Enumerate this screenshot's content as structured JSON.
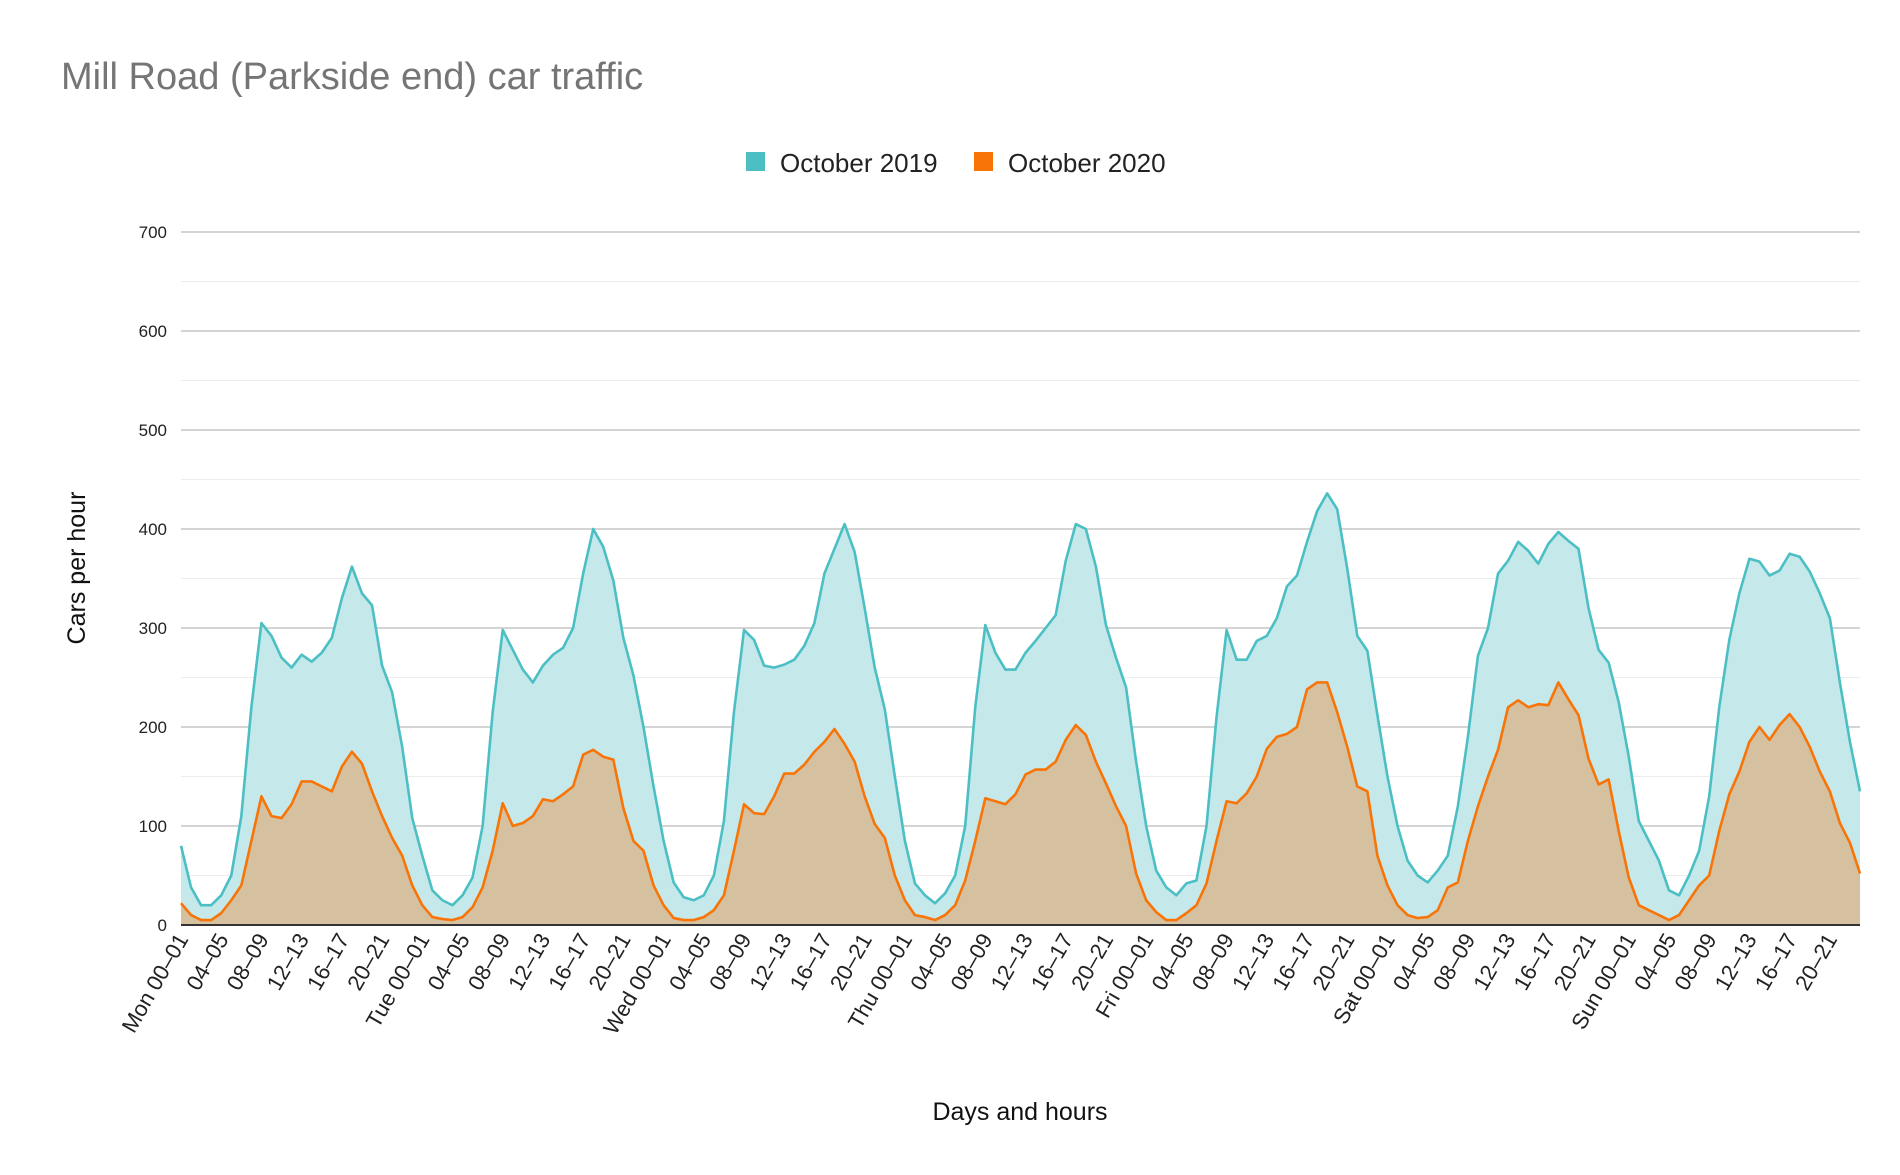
{
  "chart_data": {
    "type": "area",
    "title": "Mill Road (Parkside end) car traffic",
    "xlabel": "Days and hours",
    "ylabel": "Cars per hour",
    "ylim": [
      0,
      700
    ],
    "y_ticks": [
      0,
      100,
      200,
      300,
      400,
      500,
      600,
      700
    ],
    "minor_gridlines": true,
    "legend_position": "top",
    "x_tick_labels": [
      "Mon 00–01",
      "04–05",
      "08–09",
      "12–13",
      "16–17",
      "20–21",
      "Tue 00–01",
      "04–05",
      "08–09",
      "12–13",
      "16–17",
      "20–21",
      "Wed 00–01",
      "04–05",
      "08–09",
      "12–13",
      "16–17",
      "20–21",
      "Thu 00–01",
      "04–05",
      "08–09",
      "12–13",
      "16–17",
      "20–21",
      "Fri 00–01",
      "04–05",
      "08–09",
      "12–13",
      "16–17",
      "20–21",
      "Sat 00–01",
      "04–05",
      "08–09",
      "12–13",
      "16–17",
      "20–21",
      "Sun 00–01",
      "04–05",
      "08–09",
      "12–13",
      "16–17",
      "20–21"
    ],
    "x_tick_every_hours": 4,
    "series": [
      {
        "name": "October 2019",
        "color": "#4bbfc4",
        "fill": "#c5e9eb",
        "values": [
          80,
          38,
          20,
          20,
          30,
          50,
          110,
          220,
          305,
          292,
          270,
          260,
          273,
          266,
          275,
          290,
          330,
          362,
          335,
          323,
          262,
          235,
          180,
          108,
          70,
          35,
          25,
          20,
          30,
          48,
          100,
          215,
          298,
          278,
          258,
          245,
          262,
          273,
          280,
          300,
          355,
          400,
          382,
          348,
          290,
          252,
          200,
          140,
          85,
          43,
          28,
          25,
          30,
          50,
          105,
          215,
          298,
          288,
          262,
          260,
          263,
          268,
          282,
          305,
          355,
          380,
          405,
          377,
          320,
          260,
          218,
          150,
          85,
          42,
          30,
          22,
          32,
          50,
          100,
          220,
          303,
          275,
          258,
          258,
          275,
          287,
          300,
          313,
          368,
          405,
          400,
          362,
          303,
          270,
          240,
          165,
          100,
          55,
          38,
          30,
          42,
          45,
          100,
          210,
          298,
          268,
          268,
          287,
          292,
          310,
          342,
          353,
          387,
          418,
          436,
          420,
          360,
          292,
          277,
          212,
          150,
          100,
          65,
          50,
          43,
          55,
          70,
          120,
          190,
          272,
          300,
          355,
          368,
          387,
          378,
          365,
          385,
          397,
          388,
          380,
          320,
          278,
          265,
          225,
          170,
          105,
          85,
          65,
          35,
          30,
          50,
          75,
          130,
          220,
          288,
          335,
          370,
          367,
          353,
          358,
          375,
          372,
          357,
          335,
          310,
          245,
          185,
          135
        ]
      },
      {
        "name": "October 2020",
        "color": "#f97407",
        "fill": "#d5c1a0",
        "values": [
          22,
          10,
          5,
          5,
          12,
          25,
          40,
          85,
          130,
          110,
          108,
          122,
          145,
          145,
          140,
          135,
          160,
          175,
          163,
          135,
          110,
          88,
          70,
          40,
          20,
          8,
          6,
          5,
          8,
          18,
          38,
          75,
          123,
          100,
          103,
          110,
          127,
          125,
          132,
          140,
          172,
          177,
          170,
          167,
          118,
          85,
          75,
          40,
          20,
          7,
          5,
          5,
          8,
          15,
          30,
          75,
          122,
          113,
          112,
          130,
          153,
          153,
          162,
          175,
          185,
          198,
          183,
          165,
          130,
          102,
          88,
          50,
          25,
          10,
          8,
          5,
          10,
          20,
          45,
          85,
          128,
          125,
          122,
          132,
          152,
          157,
          157,
          165,
          187,
          202,
          192,
          165,
          143,
          120,
          100,
          52,
          25,
          13,
          5,
          5,
          12,
          20,
          42,
          85,
          125,
          123,
          133,
          150,
          178,
          190,
          193,
          200,
          238,
          245,
          245,
          215,
          180,
          140,
          135,
          70,
          40,
          20,
          10,
          7,
          8,
          15,
          38,
          43,
          85,
          120,
          150,
          177,
          220,
          227,
          220,
          223,
          222,
          245,
          228,
          212,
          168,
          142,
          147,
          95,
          48,
          20,
          15,
          10,
          5,
          10,
          25,
          40,
          50,
          95,
          132,
          155,
          185,
          200,
          187,
          202,
          213,
          200,
          180,
          155,
          135,
          103,
          83,
          52
        ]
      }
    ]
  }
}
